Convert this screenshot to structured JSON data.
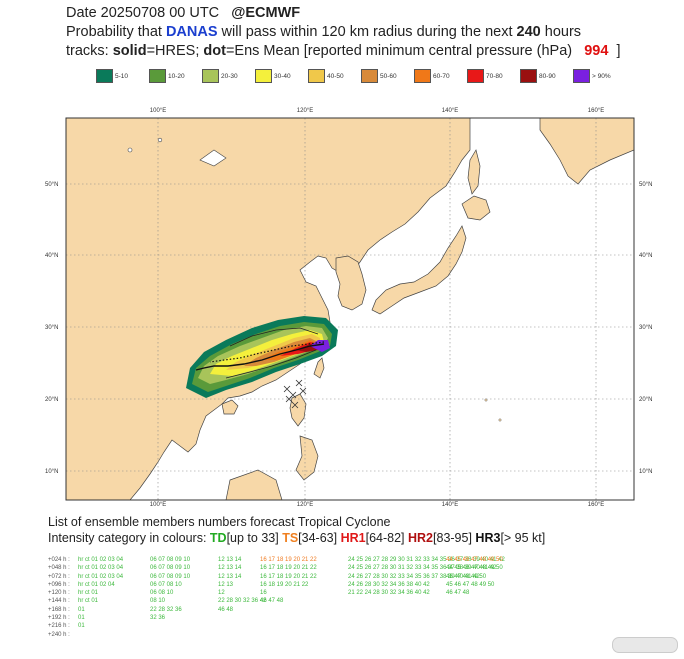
{
  "header": {
    "line1_a": "Date 20250708 00 UTC",
    "line1_b": "@ECMWF",
    "line2_a": "Probability that",
    "line2_storm": "DANAS",
    "line2_b": "will pass within 120 km radius during the next",
    "line2_hours": "240",
    "line2_c": "hours",
    "line3_a": "tracks:",
    "line3_solid": "solid",
    "line3_b": "=HRES;",
    "line3_dot": "dot",
    "line3_c": "=Ens Mean [reported minimum central pressure (hPa)",
    "line3_pressure": "994",
    "line3_d": "]"
  },
  "legend": [
    {
      "label": "5-10",
      "color": "#0a7a5a"
    },
    {
      "label": "10-20",
      "color": "#5a9a3a"
    },
    {
      "label": "20-30",
      "color": "#a8c45a"
    },
    {
      "label": "30-40",
      "color": "#f4f03c"
    },
    {
      "label": "40-50",
      "color": "#f0c84a"
    },
    {
      "label": "50-60",
      "color": "#d88a3a"
    },
    {
      "label": "60-70",
      "color": "#f07818"
    },
    {
      "label": "70-80",
      "color": "#e81818"
    },
    {
      "label": "80-90",
      "color": "#9a1010"
    },
    {
      "label": "> 90%",
      "color": "#7a20e0"
    }
  ],
  "map": {
    "lon_labels": [
      "100°E",
      "120°E",
      "140°E",
      "160°E"
    ],
    "lat_labels": [
      "50°N",
      "40°N",
      "30°N",
      "20°N",
      "10°N"
    ],
    "land_color": "#f7d8a8",
    "sea_color": "#ffffff"
  },
  "bottom": {
    "title": "List of ensemble members numbers forecast Tropical Cyclone",
    "intensity_prefix": "Intensity category in colours:",
    "td": "TD",
    "td_range": "[up to 33]",
    "ts": "TS",
    "ts_range": "[34-63]",
    "hr1": "HR1",
    "hr1_range": "[64-82]",
    "hr2": "HR2",
    "hr2_range": "[83-95]",
    "hr3": "HR3",
    "hr3_range": "[> 95 kt]"
  },
  "members_table": [
    {
      "step": "+024 h :",
      "groups": [
        [
          "hr ct 01 02 03 04",
          "td"
        ],
        [
          "06 07 08 09 10",
          "td"
        ],
        [
          "12 13 14",
          "td"
        ],
        [
          "16 17 18 19 20 21 22",
          "ts"
        ],
        [
          "24 25 26 27 28 29 30 31 32 33 34 35 36 37 38 39 40 41 42",
          "td"
        ],
        [
          "44 45 46 47 48 49 50",
          "ts"
        ]
      ]
    },
    {
      "step": "+048 h :",
      "groups": [
        [
          "hr ct 01 02 03 04",
          "td"
        ],
        [
          "06 07 08 09 10",
          "td"
        ],
        [
          "12 13 14",
          "td"
        ],
        [
          "16 17 18 19 20 21 22",
          "td"
        ],
        [
          "24 25 26 27 28 30 31 32 33 34 35 36 37 38 39 40 41 42",
          "td"
        ],
        [
          "44 45 46 47 48 49 50",
          "td"
        ]
      ]
    },
    {
      "step": "+072 h :",
      "groups": [
        [
          "hr ct 01 02 03 04",
          "td"
        ],
        [
          "06 07 08 09 10",
          "td"
        ],
        [
          "12 13 14",
          "td"
        ],
        [
          "16 17 18 19 20 21 22",
          "td"
        ],
        [
          "24 26 27 28 30 32 33 34 35 36 37 38 39 40 41 42",
          "td"
        ],
        [
          "46 47 48 49 50",
          "td"
        ]
      ]
    },
    {
      "step": "+096 h :",
      "groups": [
        [
          "hr ct 01 02 04",
          "td"
        ],
        [
          "06 07 08 10",
          "td"
        ],
        [
          "12 13",
          "td"
        ],
        [
          "16 18 19 20 21 22",
          "td"
        ],
        [
          "24 26 28 30 32 34 36 38 40 42",
          "td"
        ],
        [
          "45 46 47 48 49 50",
          "td"
        ]
      ]
    },
    {
      "step": "+120 h :",
      "groups": [
        [
          "hr ct 01",
          "td"
        ],
        [
          "06 08 10",
          "td"
        ],
        [
          "12",
          "td"
        ],
        [
          "16",
          "td"
        ],
        [
          "21 22 24 28 30 32 34 36 40 42",
          "td"
        ],
        [
          "46 47 48",
          "td"
        ]
      ]
    },
    {
      "step": "+144 h :",
      "groups": [
        [
          "hr ct 01",
          "td"
        ],
        [
          "08 10",
          "td"
        ],
        [
          "22 28 30 32 36 42",
          "td"
        ],
        [
          "46 47 48",
          "td"
        ]
      ]
    },
    {
      "step": "+168 h :",
      "groups": [
        [
          "01",
          "td"
        ],
        [
          "22 28 32 36",
          "td"
        ],
        [
          "46 48",
          "td"
        ]
      ]
    },
    {
      "step": "+192 h :",
      "groups": [
        [
          "01",
          "td"
        ],
        [
          "32 36",
          "td"
        ]
      ]
    },
    {
      "step": "+216 h :",
      "groups": [
        [
          "01",
          "td"
        ]
      ]
    },
    {
      "step": "+240 h :",
      "groups": []
    }
  ]
}
